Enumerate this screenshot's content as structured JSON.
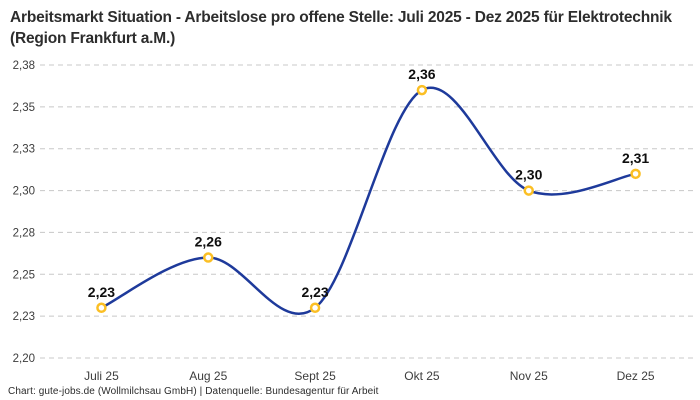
{
  "title": "Arbeitsmarkt Situation - Arbeitslose pro offene Stelle: Juli 2025 - Dez 2025 für Elektrotechnik (Region Frankfurt a.M.)",
  "footer": "Chart: gute-jobs.de (Wollmilchsau GmbH) | Datenquelle: Bundesagentur für Arbeit",
  "chart_data": {
    "type": "line",
    "title": "Arbeitsmarkt Situation - Arbeitslose pro offene Stelle: Juli 2025 - Dez 2025 für Elektrotechnik (Region Frankfurt a.M.)",
    "categories": [
      "Juli 25",
      "Aug 25",
      "Sept 25",
      "Okt 25",
      "Nov 25",
      "Dez 25"
    ],
    "values": [
      2.23,
      2.26,
      2.23,
      2.36,
      2.3,
      2.31
    ],
    "point_labels": [
      "2,23",
      "2,26",
      "2,23",
      "2,36",
      "2,30",
      "2,31"
    ],
    "xlabel": "",
    "ylabel": "",
    "ylim": [
      2.2,
      2.375
    ],
    "y_ticks": [
      {
        "value": 2.375,
        "label": "2,38"
      },
      {
        "value": 2.35,
        "label": "2,35"
      },
      {
        "value": 2.325,
        "label": "2,33"
      },
      {
        "value": 2.3,
        "label": "2,30"
      },
      {
        "value": 2.275,
        "label": "2,28"
      },
      {
        "value": 2.25,
        "label": "2,25"
      },
      {
        "value": 2.225,
        "label": "2,23"
      },
      {
        "value": 2.2,
        "label": "2,20"
      }
    ],
    "grid": "horizontal-dashed",
    "legend": "none",
    "smooth": true,
    "colors": {
      "line": "#1e3a9b",
      "marker_ring": "#fbbf24",
      "marker_fill": "#ffffff",
      "gridline": "#c8c8c8",
      "tick_text": "#3d3d3d",
      "point_label_text": "#0f0f0f"
    }
  }
}
